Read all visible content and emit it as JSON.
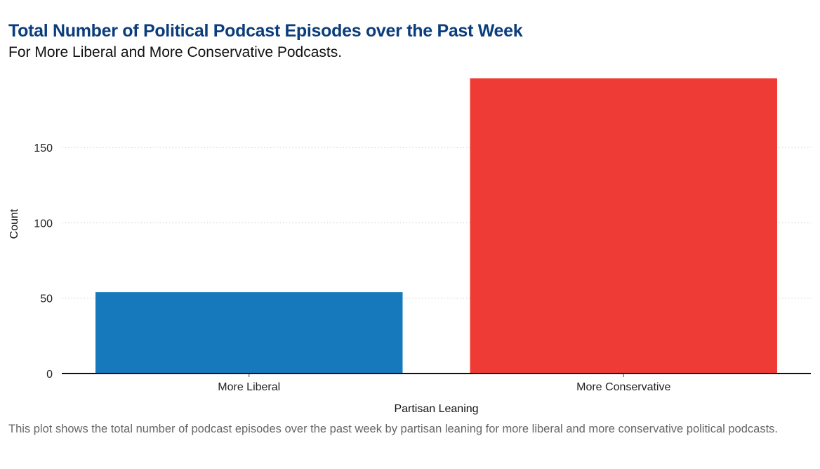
{
  "chart_data": {
    "type": "bar",
    "title": "Total Number of Political Podcast Episodes over the Past Week",
    "subtitle": "For More Liberal and More Conservative Podcasts.",
    "caption": "This plot shows the total number of podcast episodes over the past week by partisan leaning for more liberal and more conservative political podcasts.",
    "xlabel": "Partisan Leaning",
    "ylabel": "Count",
    "categories": [
      "More Liberal",
      "More Conservative"
    ],
    "values": [
      54,
      196
    ],
    "colors": [
      "#1579bb",
      "#ee3b36"
    ],
    "ylim": [
      0,
      206
    ],
    "yticks": [
      0,
      50,
      100,
      150
    ],
    "grid": "horizontal dotted",
    "legend": "none"
  }
}
